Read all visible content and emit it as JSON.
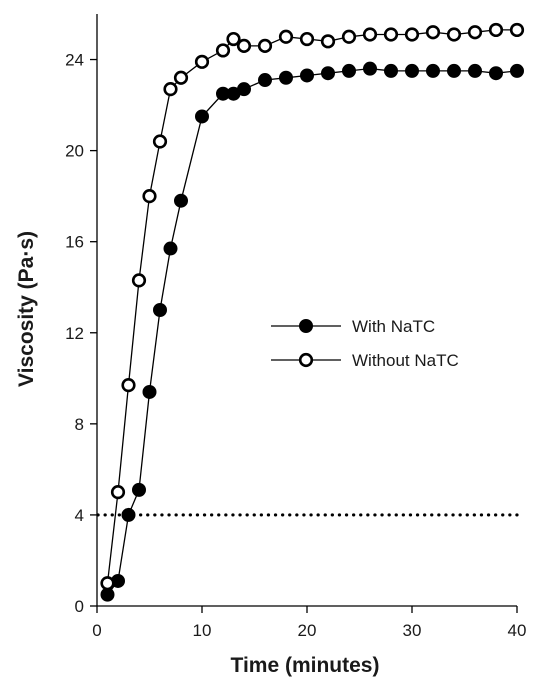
{
  "chart_data": {
    "type": "line",
    "xlabel": "Time (minutes)",
    "ylabel": "Viscosity (Pa·s)",
    "xlim": [
      0,
      40
    ],
    "ylim": [
      0,
      26
    ],
    "xticks": [
      0,
      10,
      20,
      30,
      40
    ],
    "yticks": [
      0,
      4,
      8,
      12,
      16,
      20,
      24
    ],
    "grid": false,
    "legend_position": "right-middle",
    "reference_line": {
      "y": 4,
      "style": "dotted"
    },
    "series": [
      {
        "name": "With NaTC",
        "marker": "filled-circle",
        "color": "#000000",
        "x": [
          1,
          2,
          3,
          4,
          5,
          6,
          7,
          8,
          10,
          12,
          13,
          14,
          16,
          18,
          20,
          22,
          24,
          26,
          28,
          30,
          32,
          34,
          36,
          38,
          40
        ],
        "y": [
          0.5,
          1.1,
          4.0,
          5.1,
          9.4,
          13.0,
          15.7,
          17.8,
          21.5,
          22.5,
          22.5,
          22.7,
          23.1,
          23.2,
          23.3,
          23.4,
          23.5,
          23.6,
          23.5,
          23.5,
          23.5,
          23.5,
          23.5,
          23.4,
          23.5
        ]
      },
      {
        "name": "Without NaTC",
        "marker": "open-circle",
        "color": "#000000",
        "x": [
          1,
          2,
          3,
          4,
          5,
          6,
          7,
          8,
          10,
          12,
          13,
          14,
          16,
          18,
          20,
          22,
          24,
          26,
          28,
          30,
          32,
          34,
          36,
          38,
          40
        ],
        "y": [
          1.0,
          5.0,
          9.7,
          14.3,
          18.0,
          20.4,
          22.7,
          23.2,
          23.9,
          24.4,
          24.9,
          24.6,
          24.6,
          25.0,
          24.9,
          24.8,
          25.0,
          25.1,
          25.1,
          25.1,
          25.2,
          25.1,
          25.2,
          25.3,
          25.3
        ]
      }
    ]
  }
}
